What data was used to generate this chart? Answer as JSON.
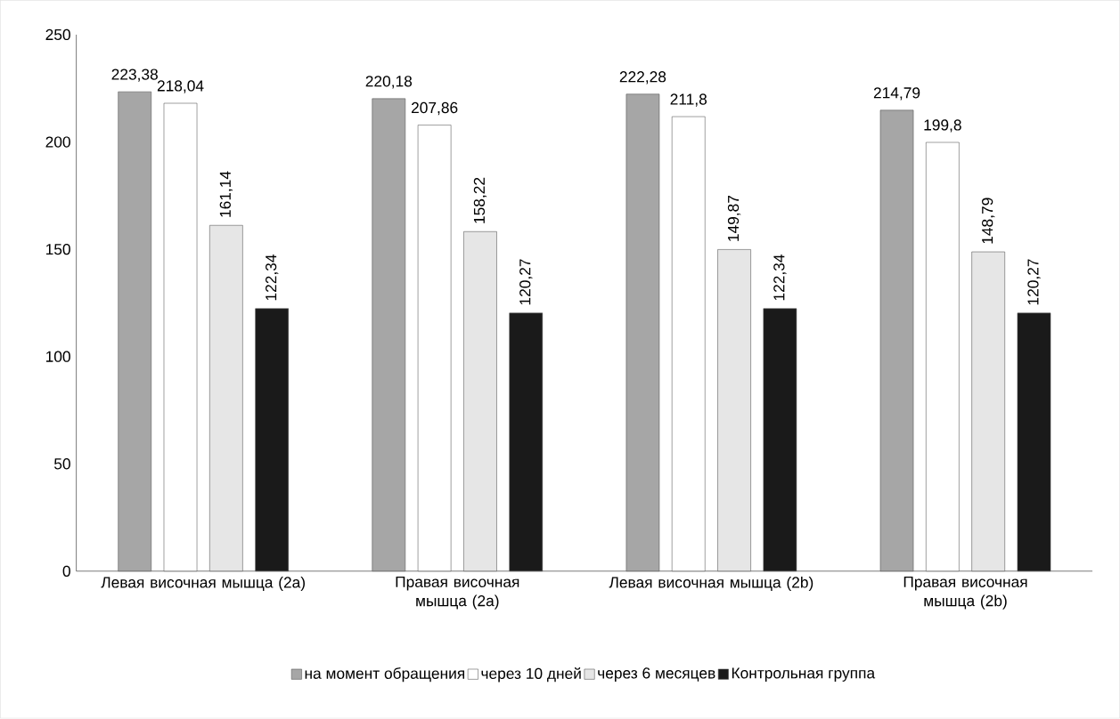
{
  "chart_data": {
    "type": "bar",
    "categories": [
      "Левая височная мышца (2a)",
      "Правая височная мышца (2a)",
      "Левая височная мышца (2b)",
      "Правая височная мышца (2b)"
    ],
    "series": [
      {
        "name": "на момент обращения",
        "color": "#a6a6a6",
        "values": [
          223.38,
          220.18,
          222.28,
          214.79
        ],
        "value_labels": [
          "223,38",
          "220,18",
          "222,28",
          "214,79"
        ]
      },
      {
        "name": "через 10 дней",
        "color": "#ffffff",
        "values": [
          218.04,
          207.86,
          211.8,
          199.8
        ],
        "value_labels": [
          "218,04",
          "207,86",
          "211,8",
          "199,8"
        ]
      },
      {
        "name": "через 6 месяцев",
        "color": "#e6e6e6",
        "values": [
          161.14,
          158.22,
          149.87,
          148.79
        ],
        "value_labels": [
          "161,14",
          "158,22",
          "149,87",
          "148,79"
        ]
      },
      {
        "name": "Контрольная группа",
        "color": "#1a1a1a",
        "values": [
          122.34,
          120.27,
          122.34,
          120.27
        ],
        "value_labels": [
          "122,34",
          "120,27",
          "122,34",
          "120,27"
        ]
      }
    ],
    "ylim": [
      0,
      250
    ],
    "yticks": [
      0,
      50,
      100,
      150,
      200,
      250
    ],
    "grid": false,
    "legend": "bottom"
  }
}
